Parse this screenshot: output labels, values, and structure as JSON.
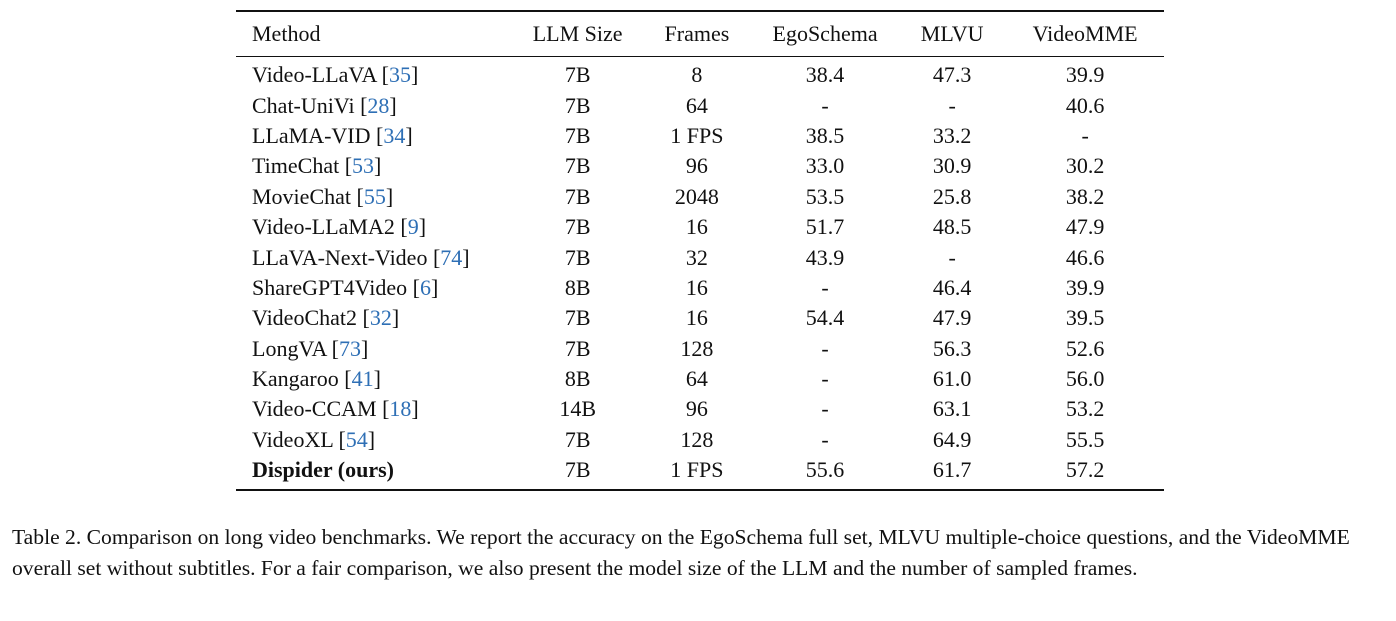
{
  "table": {
    "headers": {
      "method": "Method",
      "llm_size": "LLM Size",
      "frames": "Frames",
      "egoschema": "EgoSchema",
      "mlvu": "MLVU",
      "videomme": "VideoMME"
    },
    "rows": [
      {
        "name": "Video-LLaVA",
        "ref": "35",
        "size": "7B",
        "frames": "8",
        "ego": "38.4",
        "mlvu": "47.3",
        "vmme": "39.9"
      },
      {
        "name": "Chat-UniVi",
        "ref": "28",
        "size": "7B",
        "frames": "64",
        "ego": "-",
        "mlvu": "-",
        "vmme": "40.6"
      },
      {
        "name": "LLaMA-VID",
        "ref": "34",
        "size": "7B",
        "frames": "1 FPS",
        "ego": "38.5",
        "mlvu": "33.2",
        "vmme": "-"
      },
      {
        "name": "TimeChat",
        "ref": "53",
        "size": "7B",
        "frames": "96",
        "ego": "33.0",
        "mlvu": "30.9",
        "vmme": "30.2"
      },
      {
        "name": "MovieChat",
        "ref": "55",
        "size": "7B",
        "frames": "2048",
        "ego": "53.5",
        "mlvu": "25.8",
        "vmme": "38.2"
      },
      {
        "name": "Video-LLaMA2",
        "ref": "9",
        "size": "7B",
        "frames": "16",
        "ego": "51.7",
        "mlvu": "48.5",
        "vmme": "47.9"
      },
      {
        "name": "LLaVA-Next-Video",
        "ref": "74",
        "size": "7B",
        "frames": "32",
        "ego": "43.9",
        "mlvu": "-",
        "vmme": "46.6"
      },
      {
        "name": "ShareGPT4Video",
        "ref": "6",
        "size": "8B",
        "frames": "16",
        "ego": "-",
        "mlvu": "46.4",
        "vmme": "39.9"
      },
      {
        "name": "VideoChat2",
        "ref": "32",
        "size": "7B",
        "frames": "16",
        "ego": "54.4",
        "mlvu": "47.9",
        "vmme": "39.5"
      },
      {
        "name": "LongVA",
        "ref": "73",
        "size": "7B",
        "frames": "128",
        "ego": "-",
        "mlvu": "56.3",
        "vmme": "52.6"
      },
      {
        "name": "Kangaroo",
        "ref": "41",
        "size": "8B",
        "frames": "64",
        "ego": "-",
        "mlvu": "61.0",
        "vmme": "56.0"
      },
      {
        "name": "Video-CCAM",
        "ref": "18",
        "size": "14B",
        "frames": "96",
        "ego": "-",
        "mlvu": "63.1",
        "vmme": "53.2"
      },
      {
        "name": "VideoXL",
        "ref": "54",
        "size": "7B",
        "frames": "128",
        "ego": "-",
        "mlvu": "64.9",
        "vmme": "55.5"
      }
    ],
    "ours": {
      "name": "Dispider (ours)",
      "size": "7B",
      "frames": "1 FPS",
      "ego": "55.6",
      "mlvu": "61.7",
      "vmme": "57.2"
    }
  },
  "caption": {
    "text": "Table 2. Comparison on long video benchmarks. We report the accuracy on the EgoSchema full set, MLVU multiple-choice questions, and the VideoMME overall set without subtitles. For a fair comparison, we also present the model size of the LLM and the number of sampled frames."
  }
}
